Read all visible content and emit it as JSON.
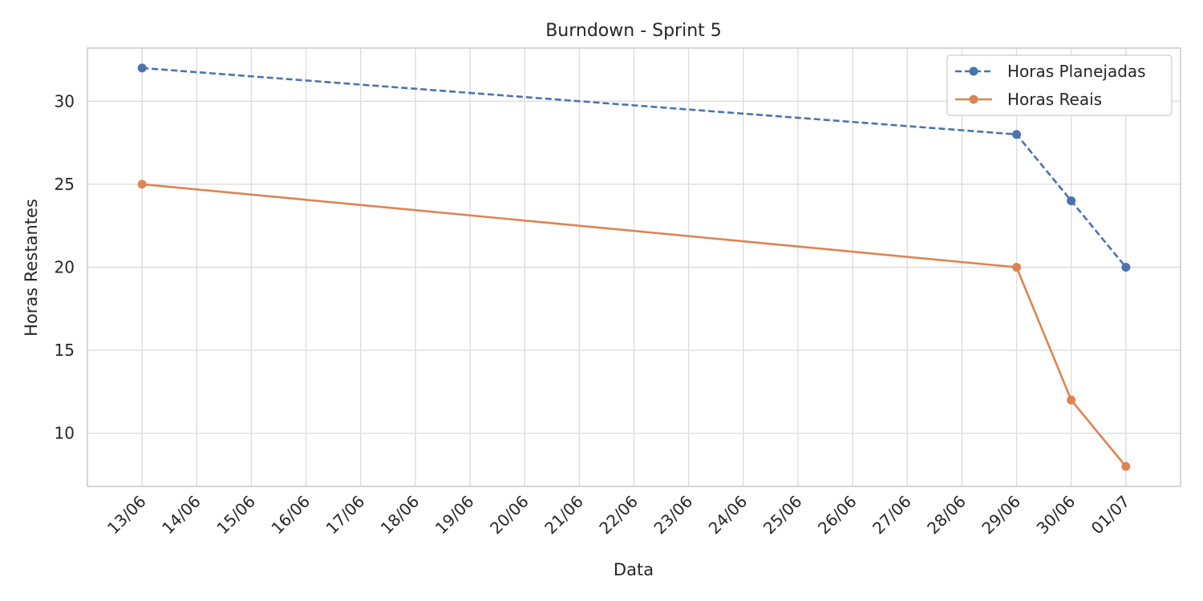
{
  "chart_data": {
    "type": "line",
    "title": "Burndown - Sprint 5",
    "xlabel": "Data",
    "ylabel": "Horas Restantes",
    "x": [
      "13/06",
      "29/06",
      "30/06",
      "01/07"
    ],
    "x_ticks": [
      "13/06",
      "14/06",
      "15/06",
      "16/06",
      "17/06",
      "18/06",
      "19/06",
      "20/06",
      "21/06",
      "22/06",
      "23/06",
      "24/06",
      "25/06",
      "26/06",
      "27/06",
      "28/06",
      "29/06",
      "30/06",
      "01/07"
    ],
    "y_ticks": [
      10,
      15,
      20,
      25,
      30
    ],
    "xlim": [
      "12/06",
      "02/07"
    ],
    "ylim": [
      6.8,
      33.2
    ],
    "grid": true,
    "legend_position": "top-right",
    "series": [
      {
        "name": "Horas Planejadas",
        "values": [
          32,
          28,
          24,
          20
        ],
        "color": "#4c72b0",
        "style": "dashed",
        "marker": "circle"
      },
      {
        "name": "Horas Reais",
        "values": [
          25,
          20,
          12,
          8
        ],
        "color": "#dd8452",
        "style": "solid",
        "marker": "circle"
      }
    ]
  }
}
